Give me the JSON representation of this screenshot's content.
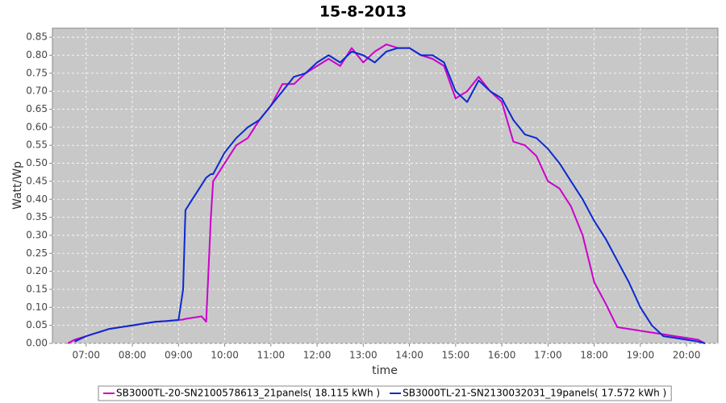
{
  "chart_data": {
    "type": "line",
    "title": "15-8-2013",
    "x_label": "time",
    "y_label": "Watt/Wp",
    "x": [
      6.6,
      6.75,
      7.0,
      7.25,
      7.5,
      7.75,
      8.0,
      8.25,
      8.5,
      8.75,
      9.0,
      9.1,
      9.15,
      9.25,
      9.5,
      9.6,
      9.7,
      9.75,
      10.0,
      10.25,
      10.5,
      10.75,
      11.0,
      11.25,
      11.5,
      11.75,
      12.0,
      12.25,
      12.5,
      12.75,
      13.0,
      13.25,
      13.5,
      13.75,
      14.0,
      14.25,
      14.5,
      14.75,
      15.0,
      15.25,
      15.5,
      15.75,
      16.0,
      16.25,
      16.5,
      16.75,
      17.0,
      17.25,
      17.5,
      17.75,
      18.0,
      18.25,
      18.5,
      18.75,
      19.0,
      19.25,
      19.5,
      19.75,
      20.0,
      20.25,
      20.4
    ],
    "series": [
      {
        "name": "SB3000TL-20-SN2100578613_21panels( 18.115 kWh )",
        "color": "#cc00cc",
        "values": [
          0.0,
          0.01,
          0.02,
          0.03,
          0.04,
          0.045,
          0.05,
          0.055,
          0.06,
          0.062,
          0.065,
          0.066,
          0.068,
          0.07,
          0.075,
          0.06,
          0.35,
          0.45,
          0.5,
          0.55,
          0.57,
          0.62,
          0.66,
          0.72,
          0.72,
          0.75,
          0.77,
          0.79,
          0.77,
          0.82,
          0.78,
          0.81,
          0.83,
          0.82,
          0.82,
          0.8,
          0.79,
          0.77,
          0.68,
          0.7,
          0.74,
          0.7,
          0.67,
          0.56,
          0.55,
          0.52,
          0.45,
          0.43,
          0.38,
          0.3,
          0.17,
          0.11,
          0.045,
          0.04,
          0.035,
          0.03,
          0.025,
          0.02,
          0.015,
          0.01,
          0.0
        ]
      },
      {
        "name": "SB3000TL-21-SN2130032031_19panels( 17.572 kWh )",
        "color": "#0a2ad0",
        "values": [
          null,
          0.005,
          0.02,
          0.03,
          0.04,
          0.045,
          0.05,
          0.055,
          0.06,
          0.062,
          0.065,
          0.15,
          0.37,
          0.39,
          0.44,
          0.46,
          0.47,
          0.47,
          0.53,
          0.57,
          0.6,
          0.62,
          0.66,
          0.7,
          0.74,
          0.75,
          0.78,
          0.8,
          0.78,
          0.81,
          0.8,
          0.78,
          0.81,
          0.82,
          0.82,
          0.8,
          0.8,
          0.78,
          0.7,
          0.67,
          0.73,
          0.7,
          0.68,
          0.62,
          0.58,
          0.57,
          0.54,
          0.5,
          0.45,
          0.4,
          0.34,
          0.29,
          0.23,
          0.17,
          0.1,
          0.05,
          0.02,
          0.015,
          0.01,
          0.005,
          0.0
        ]
      }
    ],
    "xlim": [
      6.27,
      20.68
    ],
    "ylim": [
      0,
      0.875
    ],
    "xticks": [
      {
        "value": 7,
        "label": "07:00"
      },
      {
        "value": 8,
        "label": "08:00"
      },
      {
        "value": 9,
        "label": "09:00"
      },
      {
        "value": 10,
        "label": "10:00"
      },
      {
        "value": 11,
        "label": "11:00"
      },
      {
        "value": 12,
        "label": "12:00"
      },
      {
        "value": 13,
        "label": "13:00"
      },
      {
        "value": 14,
        "label": "14:00"
      },
      {
        "value": 15,
        "label": "15:00"
      },
      {
        "value": 16,
        "label": "16:00"
      },
      {
        "value": 17,
        "label": "17:00"
      },
      {
        "value": 18,
        "label": "18:00"
      },
      {
        "value": 19,
        "label": "19:00"
      },
      {
        "value": 20,
        "label": "20:00"
      }
    ],
    "yticks": [
      {
        "value": 0,
        "label": "0.00"
      },
      0.05,
      {
        "value": 0.1,
        "label": "0.10"
      },
      0.15,
      {
        "value": 0.2,
        "label": "0.20"
      },
      0.25,
      {
        "value": 0.3,
        "label": "0.30"
      },
      0.35,
      {
        "value": 0.4,
        "label": "0.40"
      },
      0.45,
      {
        "value": 0.5,
        "label": "0.50"
      },
      0.55,
      {
        "value": 0.6,
        "label": "0.60"
      },
      0.65,
      {
        "value": 0.7,
        "label": "0.70"
      },
      0.75,
      {
        "value": 0.8,
        "label": "0.80"
      },
      0.85
    ],
    "grid": true,
    "legend": "bottom"
  }
}
